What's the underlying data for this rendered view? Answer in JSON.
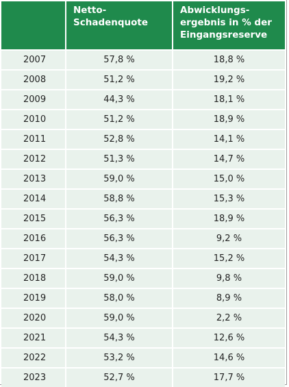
{
  "table": {
    "headers": {
      "year": "",
      "quote_line1": "Netto-",
      "quote_line2": "Schadenquote",
      "abw_line1": "Abwicklungs-",
      "abw_line2": "ergebnis in % der",
      "abw_line3": "Eingangsreserve"
    },
    "rows": [
      {
        "year": "2007",
        "quote": "57,8 %",
        "abw": "18,8 %"
      },
      {
        "year": "2008",
        "quote": "51,2 %",
        "abw": "19,2 %"
      },
      {
        "year": "2009",
        "quote": "44,3 %",
        "abw": "18,1 %"
      },
      {
        "year": "2010",
        "quote": "51,2 %",
        "abw": "18,9 %"
      },
      {
        "year": "2011",
        "quote": "52,8 %",
        "abw": "14,1 %"
      },
      {
        "year": "2012",
        "quote": "51,3 %",
        "abw": "14,7 %"
      },
      {
        "year": "2013",
        "quote": "59,0 %",
        "abw": "15,0 %"
      },
      {
        "year": "2014",
        "quote": "58,8 %",
        "abw": "15,3 %"
      },
      {
        "year": "2015",
        "quote": "56,3 %",
        "abw": "18,9 %"
      },
      {
        "year": "2016",
        "quote": "56,3 %",
        "abw": "9,2 %"
      },
      {
        "year": "2017",
        "quote": "54,3 %",
        "abw": "15,2 %"
      },
      {
        "year": "2018",
        "quote": "59,0 %",
        "abw": "9,8 %"
      },
      {
        "year": "2019",
        "quote": "58,0 %",
        "abw": "8,9 %"
      },
      {
        "year": "2020",
        "quote": "59,0 %",
        "abw": "2,2 %"
      },
      {
        "year": "2021",
        "quote": "54,3 %",
        "abw": "12,6 %"
      },
      {
        "year": "2022",
        "quote": "53,2 %",
        "abw": "14,6 %"
      },
      {
        "year": "2023",
        "quote": "52,7 %",
        "abw": "17,7 %"
      }
    ],
    "colors": {
      "header_bg": "#1f8a4c",
      "row_bg": "#e9f2ec"
    }
  }
}
